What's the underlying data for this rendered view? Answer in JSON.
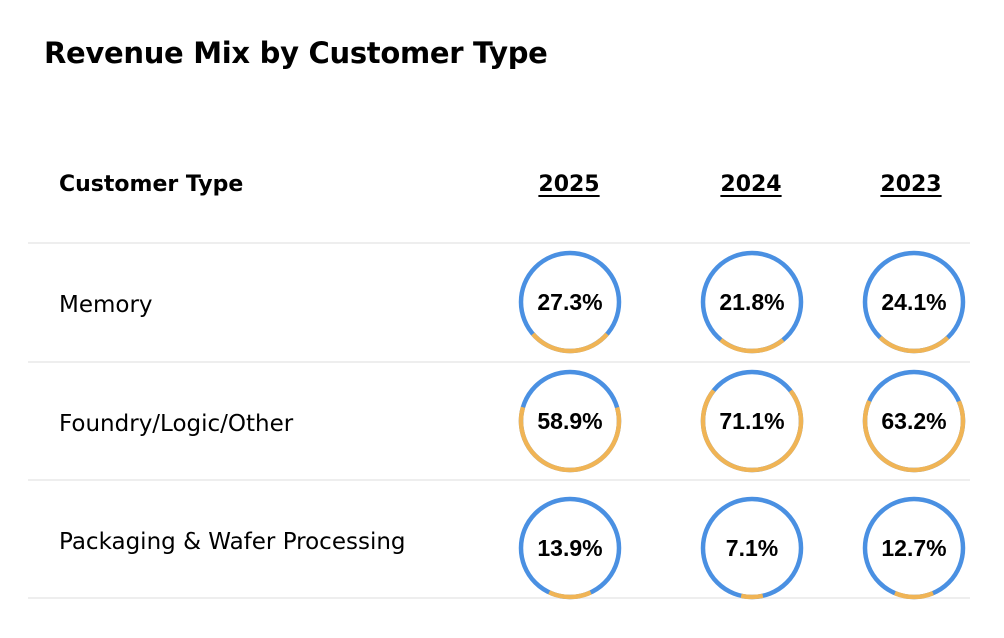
{
  "title": "Revenue Mix by Customer Type",
  "header": {
    "label": "Customer Type",
    "years": [
      "2025",
      "2024",
      "2023"
    ]
  },
  "colors": {
    "ring_base": "#4a90e2",
    "ring_share": "#f0b455",
    "rule": "#eeeeee"
  },
  "chart_data": {
    "type": "table",
    "title": "Revenue Mix by Customer Type",
    "columns": [
      "2025",
      "2024",
      "2023"
    ],
    "rows": [
      {
        "label": "Memory",
        "values": [
          27.3,
          21.8,
          24.1
        ],
        "display": [
          "27.3%",
          "21.8%",
          "24.1%"
        ]
      },
      {
        "label": "Foundry/Logic/Other",
        "values": [
          58.9,
          71.1,
          63.2
        ],
        "display": [
          "58.9%",
          "71.1%",
          "63.2%"
        ]
      },
      {
        "label": "Packaging & Wafer Processing",
        "values": [
          13.9,
          7.1,
          12.7
        ],
        "display": [
          "13.9%",
          "7.1%",
          "12.7%"
        ]
      }
    ],
    "value_unit": "%"
  }
}
